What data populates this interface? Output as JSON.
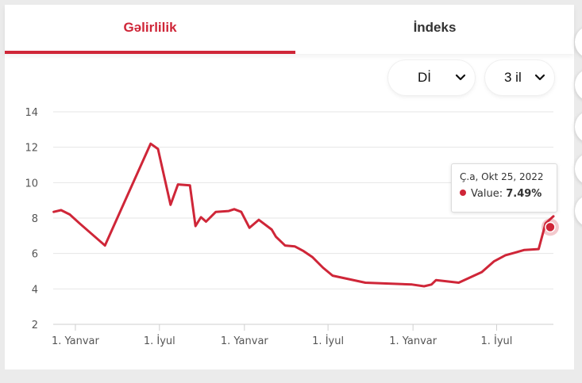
{
  "tabs": [
    {
      "label": "Gəlirlilik",
      "active": true
    },
    {
      "label": "İndeks",
      "active": false
    }
  ],
  "controls": {
    "currency": "Dİ",
    "period": "3 il"
  },
  "colors": {
    "accent": "#cf2638",
    "grid": "#e6e6e6"
  },
  "tooltip": {
    "date": "Ç.a, Okt 25, 2022",
    "label": "Value:",
    "value": "7.49%"
  },
  "chart_data": {
    "type": "line",
    "title": "",
    "xlabel": "",
    "ylabel": "",
    "ylim": [
      2,
      14
    ],
    "yticks": [
      2,
      4,
      6,
      8,
      10,
      12,
      14
    ],
    "xlim": [
      "2019-11-14",
      "2022-11-01"
    ],
    "xticks": [
      {
        "label": "1. Yanvar",
        "date": "2020-01-01"
      },
      {
        "label": "1. İyul",
        "date": "2020-07-01"
      },
      {
        "label": "1. Yanvar",
        "date": "2021-01-01"
      },
      {
        "label": "1. İyul",
        "date": "2021-07-01"
      },
      {
        "label": "1. Yanvar",
        "date": "2022-01-01"
      },
      {
        "label": "1. İyul",
        "date": "2022-07-01"
      }
    ],
    "grid": true,
    "series": [
      {
        "points": [
          [
            "2019-11-15",
            8.35
          ],
          [
            "2019-12-01",
            8.45
          ],
          [
            "2019-12-20",
            8.2
          ],
          [
            "2020-01-10",
            7.7
          ],
          [
            "2020-03-05",
            6.45
          ],
          [
            "2020-06-12",
            12.2
          ],
          [
            "2020-06-28",
            11.9
          ],
          [
            "2020-07-25",
            8.75
          ],
          [
            "2020-08-10",
            9.9
          ],
          [
            "2020-09-05",
            9.85
          ],
          [
            "2020-09-17",
            7.55
          ],
          [
            "2020-09-29",
            8.05
          ],
          [
            "2020-10-10",
            7.8
          ],
          [
            "2020-10-31",
            8.35
          ],
          [
            "2020-11-28",
            8.4
          ],
          [
            "2020-12-10",
            8.5
          ],
          [
            "2020-12-25",
            8.35
          ],
          [
            "2021-01-12",
            7.45
          ],
          [
            "2021-02-01",
            7.9
          ],
          [
            "2021-03-01",
            7.35
          ],
          [
            "2021-03-10",
            6.95
          ],
          [
            "2021-03-30",
            6.45
          ],
          [
            "2021-04-20",
            6.4
          ],
          [
            "2021-05-08",
            6.15
          ],
          [
            "2021-05-28",
            5.8
          ],
          [
            "2021-06-20",
            5.2
          ],
          [
            "2021-07-11",
            4.75
          ],
          [
            "2021-09-20",
            4.35
          ],
          [
            "2021-12-30",
            4.25
          ],
          [
            "2022-01-25",
            4.15
          ],
          [
            "2022-02-10",
            4.25
          ],
          [
            "2022-02-20",
            4.5
          ],
          [
            "2022-04-10",
            4.35
          ],
          [
            "2022-05-30",
            4.95
          ],
          [
            "2022-06-25",
            5.55
          ],
          [
            "2022-07-20",
            5.9
          ],
          [
            "2022-08-10",
            6.05
          ],
          [
            "2022-08-30",
            6.2
          ],
          [
            "2022-09-30",
            6.25
          ],
          [
            "2022-10-15",
            7.7
          ],
          [
            "2022-11-01",
            8.1
          ]
        ]
      }
    ],
    "highlight": {
      "date": "2022-10-25",
      "value": 7.49
    }
  }
}
